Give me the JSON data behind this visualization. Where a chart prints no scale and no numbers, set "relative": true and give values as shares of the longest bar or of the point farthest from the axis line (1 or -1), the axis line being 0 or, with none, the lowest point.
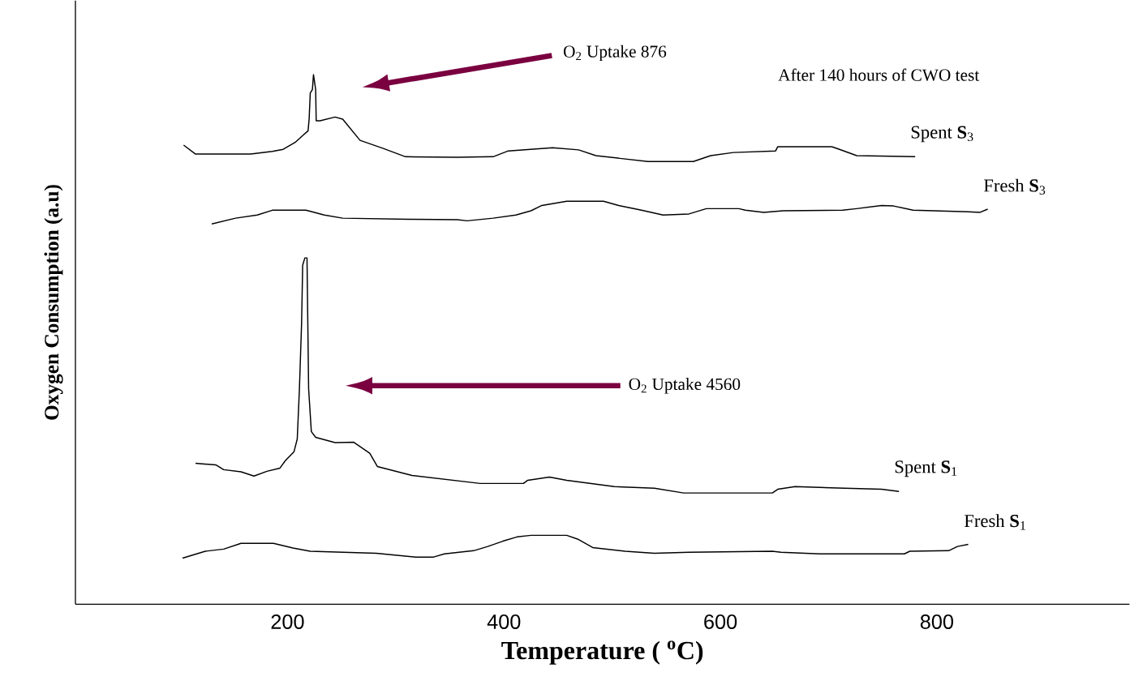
{
  "chart_data": {
    "type": "line",
    "relative": true,
    "xlabel": "Temperature ( $^{o}$C)",
    "ylabel": "Oxygen Consumption (a.u)",
    "xlim": [
      4,
      978
    ],
    "xticks": [
      200,
      400,
      600,
      800
    ],
    "grid": false,
    "marker": "none",
    "line_style": "solid",
    "series": [
      {
        "name": "Spent **S**$_{3}$",
        "color": "#000000",
        "x": [
          104,
          115,
          166,
          186,
          196,
          207,
          214,
          219,
          220,
          221,
          223,
          224,
          226,
          226.5,
          230,
          244,
          251,
          267,
          288,
          309,
          357,
          390,
          404,
          445,
          469,
          485,
          533,
          575,
          591,
          612,
          651,
          653,
          703,
          710,
          726,
          780
        ],
        "values": [
          0.867,
          0.85,
          0.85,
          0.855,
          0.859,
          0.872,
          0.885,
          0.894,
          0.917,
          0.965,
          0.972,
          1.0,
          0.972,
          0.913,
          0.913,
          0.92,
          0.916,
          0.876,
          0.861,
          0.845,
          0.844,
          0.845,
          0.856,
          0.862,
          0.858,
          0.847,
          0.836,
          0.836,
          0.847,
          0.853,
          0.856,
          0.864,
          0.864,
          0.859,
          0.847,
          0.845
        ]
      },
      {
        "name": "Fresh **S**$_{3}$",
        "color": "#000000",
        "x": [
          130,
          152,
          172,
          186,
          217,
          234,
          251,
          312,
          357,
          366,
          390,
          411,
          425,
          435,
          458,
          492,
          506,
          527,
          547,
          571,
          587,
          617,
          623,
          640,
          658,
          713,
          726,
          749,
          760,
          778,
          829,
          840,
          847
        ],
        "values": [
          0.718,
          0.729,
          0.735,
          0.744,
          0.744,
          0.735,
          0.729,
          0.727,
          0.726,
          0.724,
          0.729,
          0.735,
          0.743,
          0.753,
          0.761,
          0.761,
          0.753,
          0.744,
          0.735,
          0.737,
          0.747,
          0.747,
          0.744,
          0.74,
          0.743,
          0.744,
          0.747,
          0.753,
          0.752,
          0.744,
          0.741,
          0.74,
          0.746
        ]
      },
      {
        "name": "Spent **S**$_{1}$",
        "color": "#000000",
        "x": [
          115,
          134,
          141,
          157,
          169,
          181,
          193,
          198,
          206,
          209,
          211,
          213,
          214,
          216,
          218,
          219.5,
          222,
          226,
          244,
          261,
          276,
          283,
          315,
          378,
          418,
          422,
          442,
          458,
          502,
          539,
          566,
          608,
          648,
          653,
          669,
          715,
          749,
          765
        ],
        "values": [
          0.266,
          0.263,
          0.254,
          0.25,
          0.242,
          0.251,
          0.257,
          0.271,
          0.288,
          0.312,
          0.407,
          0.531,
          0.64,
          0.654,
          0.654,
          0.407,
          0.326,
          0.315,
          0.305,
          0.306,
          0.285,
          0.26,
          0.243,
          0.228,
          0.228,
          0.234,
          0.24,
          0.234,
          0.222,
          0.219,
          0.21,
          0.21,
          0.21,
          0.217,
          0.222,
          0.219,
          0.217,
          0.213
        ]
      },
      {
        "name": "Fresh **S**$_{1}$",
        "color": "#000000",
        "x": [
          103,
          124,
          141,
          157,
          187,
          205,
          221,
          282,
          318,
          335,
          345,
          372,
          385,
          399,
          412,
          425,
          458,
          468,
          482,
          512,
          539,
          571,
          648,
          656,
          692,
          770,
          775,
          811,
          819,
          829
        ],
        "values": [
          0.087,
          0.1,
          0.104,
          0.115,
          0.115,
          0.106,
          0.1,
          0.096,
          0.089,
          0.089,
          0.095,
          0.101,
          0.109,
          0.119,
          0.127,
          0.13,
          0.13,
          0.123,
          0.107,
          0.1,
          0.096,
          0.098,
          0.1,
          0.098,
          0.095,
          0.095,
          0.1,
          0.101,
          0.109,
          0.113
        ]
      }
    ],
    "annotations": [
      "O$_{2}$ Uptake 876",
      "O$_{2}$ Uptake 4560",
      "After 140 hours of CWO test"
    ]
  }
}
